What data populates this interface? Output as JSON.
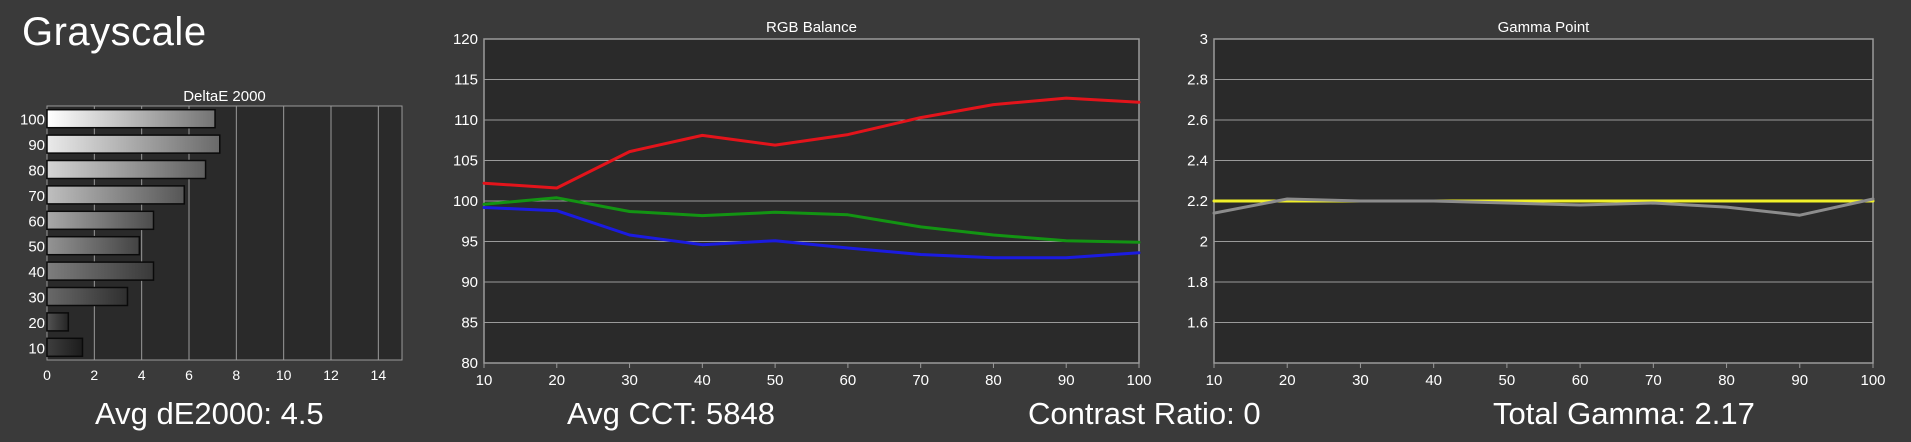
{
  "page": {
    "title": "Grayscale"
  },
  "summary": {
    "avg_de_label": "Avg dE2000: 4.5",
    "avg_cct_label": "Avg CCT: 5848",
    "contrast_label": "Contrast Ratio: 0",
    "total_gamma_label": "Total Gamma: 2.17"
  },
  "colors": {
    "background": "#3a3a3a",
    "plot_bg": "#2a2a2a",
    "grid": "#9a9a9a",
    "text": "#ffffff",
    "red": "#e3141b",
    "green": "#139413",
    "blue": "#1b1be0",
    "gamma_target": "#f0f02a",
    "gamma_measured": "#8c8c8c"
  },
  "chart_data": [
    {
      "id": "deltae",
      "type": "bar",
      "orientation": "horizontal",
      "title": "DeltaE 2000",
      "categories": [
        "100",
        "90",
        "80",
        "70",
        "60",
        "50",
        "40",
        "30",
        "20",
        "10"
      ],
      "values": [
        7.1,
        7.3,
        6.7,
        5.8,
        4.5,
        3.9,
        4.5,
        3.4,
        0.9,
        1.5
      ],
      "xlim": [
        0,
        15
      ],
      "xticks": [
        0,
        2,
        4,
        6,
        8,
        10,
        12,
        14
      ]
    },
    {
      "id": "rgb",
      "type": "line",
      "title": "RGB Balance",
      "x": [
        10,
        20,
        30,
        40,
        50,
        60,
        70,
        80,
        90,
        100
      ],
      "series": [
        {
          "color": "red",
          "values": [
            102.2,
            101.6,
            106.1,
            108.1,
            106.9,
            108.2,
            110.3,
            111.9,
            112.7,
            112.2
          ]
        },
        {
          "color": "green",
          "values": [
            99.6,
            100.4,
            98.7,
            98.2,
            98.6,
            98.3,
            96.8,
            95.8,
            95.1,
            94.9
          ]
        },
        {
          "color": "blue",
          "values": [
            99.2,
            98.8,
            95.8,
            94.6,
            95.1,
            94.2,
            93.4,
            93.0,
            93.0,
            93.6
          ]
        }
      ],
      "xlim": [
        10,
        100
      ],
      "ylim": [
        80,
        120
      ],
      "xticks": [
        10,
        20,
        30,
        40,
        50,
        60,
        70,
        80,
        90,
        100
      ],
      "yticks": [
        80,
        85,
        90,
        95,
        100,
        105,
        110,
        115,
        120
      ],
      "grid": true
    },
    {
      "id": "gamma",
      "type": "line",
      "title": "Gamma Point",
      "x": [
        10,
        20,
        30,
        40,
        50,
        60,
        70,
        80,
        90,
        100
      ],
      "series": [
        {
          "color": "gamma_target",
          "values": [
            2.2,
            2.2,
            2.2,
            2.2,
            2.2,
            2.2,
            2.2,
            2.2,
            2.2,
            2.2
          ]
        },
        {
          "color": "gamma_measured",
          "values": [
            2.14,
            2.21,
            2.2,
            2.2,
            2.19,
            2.18,
            2.19,
            2.17,
            2.13,
            2.21
          ]
        }
      ],
      "xlim": [
        10,
        100
      ],
      "ylim": [
        1.4,
        3.0
      ],
      "xticks": [
        10,
        20,
        30,
        40,
        50,
        60,
        70,
        80,
        90,
        100
      ],
      "yticks": [
        1.6,
        1.8,
        2,
        2.2,
        2.4,
        2.6,
        2.8,
        3
      ],
      "grid": true
    }
  ]
}
